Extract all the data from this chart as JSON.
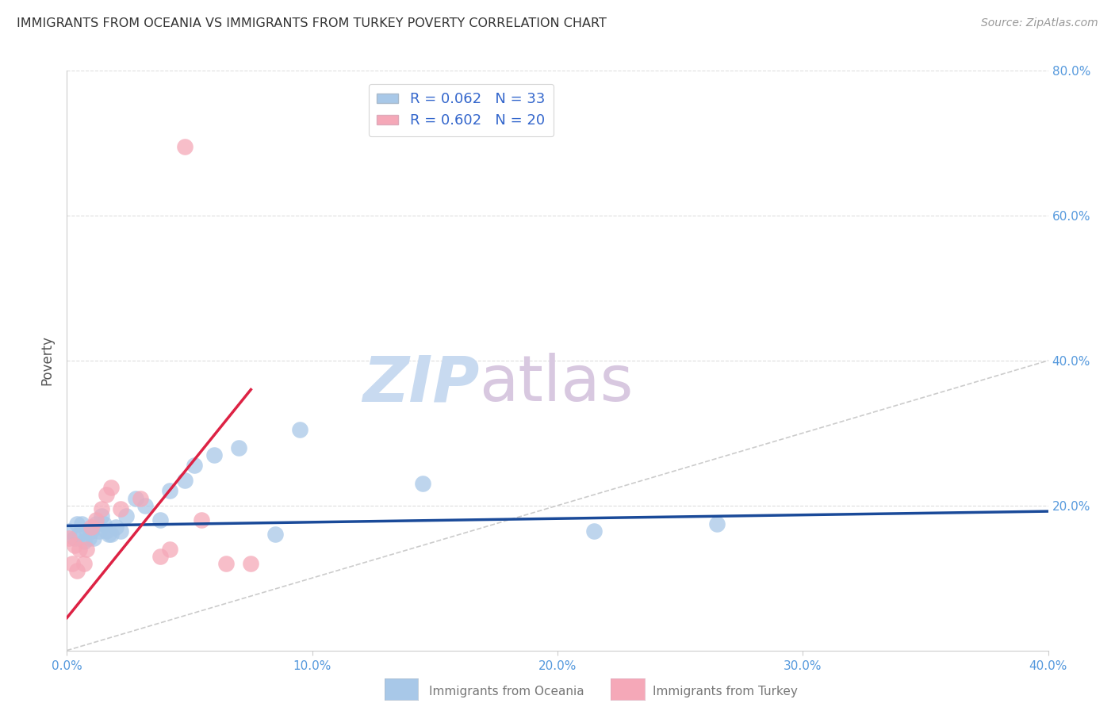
{
  "title": "IMMIGRANTS FROM OCEANIA VS IMMIGRANTS FROM TURKEY POVERTY CORRELATION CHART",
  "source": "Source: ZipAtlas.com",
  "xlabel_label": "Immigrants from Oceania",
  "xlabel_label2": "Immigrants from Turkey",
  "ylabel": "Poverty",
  "xlim": [
    0.0,
    0.4
  ],
  "ylim": [
    0.0,
    0.8
  ],
  "xticks": [
    0.0,
    0.1,
    0.2,
    0.3,
    0.4
  ],
  "yticks_right": [
    0.2,
    0.4,
    0.6,
    0.8
  ],
  "oceania_color": "#a8c8e8",
  "turkey_color": "#f5a8b8",
  "oceania_line_color": "#1a4a99",
  "turkey_line_color": "#dd2244",
  "diag_line_color": "#cccccc",
  "legend_r_oceania": "R = 0.062",
  "legend_n_oceania": "N = 33",
  "legend_r_turkey": "R = 0.602",
  "legend_n_turkey": "N = 20",
  "watermark_zip": "ZIP",
  "watermark_atlas": "atlas",
  "oceania_x": [
    0.001,
    0.003,
    0.004,
    0.005,
    0.006,
    0.007,
    0.008,
    0.009,
    0.01,
    0.011,
    0.012,
    0.013,
    0.014,
    0.015,
    0.016,
    0.017,
    0.018,
    0.02,
    0.022,
    0.024,
    0.028,
    0.032,
    0.038,
    0.042,
    0.048,
    0.052,
    0.06,
    0.07,
    0.085,
    0.095,
    0.145,
    0.215,
    0.265
  ],
  "oceania_y": [
    0.165,
    0.155,
    0.175,
    0.16,
    0.175,
    0.15,
    0.165,
    0.155,
    0.165,
    0.155,
    0.175,
    0.165,
    0.185,
    0.175,
    0.165,
    0.16,
    0.16,
    0.17,
    0.165,
    0.185,
    0.21,
    0.2,
    0.18,
    0.22,
    0.235,
    0.255,
    0.27,
    0.28,
    0.16,
    0.305,
    0.23,
    0.165,
    0.175
  ],
  "turkey_x": [
    0.001,
    0.002,
    0.003,
    0.004,
    0.005,
    0.007,
    0.008,
    0.01,
    0.012,
    0.014,
    0.016,
    0.018,
    0.022,
    0.03,
    0.038,
    0.042,
    0.048,
    0.055,
    0.065,
    0.075
  ],
  "turkey_y": [
    0.155,
    0.12,
    0.145,
    0.11,
    0.14,
    0.12,
    0.14,
    0.17,
    0.18,
    0.195,
    0.215,
    0.225,
    0.195,
    0.21,
    0.13,
    0.14,
    0.695,
    0.18,
    0.12,
    0.12
  ],
  "oceania_trend_x": [
    0.0,
    0.4
  ],
  "oceania_trend_y": [
    0.172,
    0.192
  ],
  "turkey_trend_x": [
    0.0,
    0.075
  ],
  "turkey_trend_y": [
    0.045,
    0.36
  ]
}
